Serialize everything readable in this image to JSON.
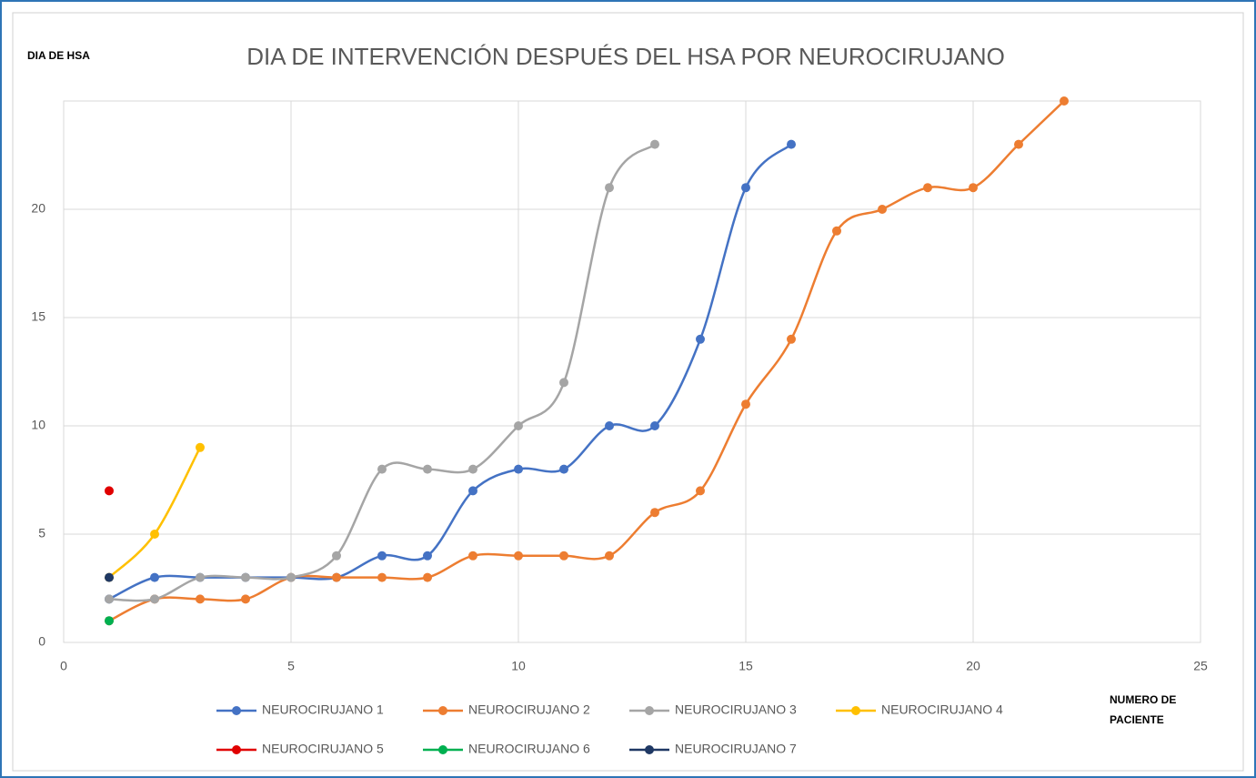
{
  "chart_data": {
    "type": "line",
    "title": "DIA DE INTERVENCIÓN DESPUÉS DEL HSA POR NEUROCIRUJANO",
    "y_label": "DIA DE HSA",
    "x_label": "NUMERO DE PACIENTE",
    "xlim": [
      0,
      25
    ],
    "xticks": [
      0,
      5,
      10,
      15,
      20,
      25
    ],
    "ylim": [
      0,
      25
    ],
    "yticks": [
      0,
      5,
      10,
      15,
      20
    ],
    "grid": true,
    "smooth": true,
    "legend": "bottom",
    "series": [
      {
        "name": "NEUROCIRUJANO 1",
        "color": "#4472c4",
        "x": [
          1,
          2,
          3,
          4,
          5,
          6,
          7,
          8,
          9,
          10,
          11,
          12,
          13,
          14,
          15,
          16
        ],
        "values": [
          2,
          3,
          3,
          3,
          3,
          3,
          4,
          4,
          7,
          8,
          8,
          10,
          10,
          14,
          21,
          23
        ]
      },
      {
        "name": "NEUROCIRUJANO 2",
        "color": "#ed7d31",
        "x": [
          1,
          2,
          3,
          4,
          5,
          6,
          7,
          8,
          9,
          10,
          11,
          12,
          13,
          14,
          15,
          16,
          17,
          18,
          19,
          20,
          21,
          22
        ],
        "values": [
          1,
          2,
          2,
          2,
          3,
          3,
          3,
          3,
          4,
          4,
          4,
          4,
          6,
          7,
          11,
          14,
          19,
          20,
          21,
          21,
          23,
          25
        ]
      },
      {
        "name": "NEUROCIRUJANO 3",
        "color": "#a5a5a5",
        "x": [
          1,
          2,
          3,
          4,
          5,
          6,
          7,
          8,
          9,
          10,
          11,
          12,
          13
        ],
        "values": [
          2,
          2,
          3,
          3,
          3,
          4,
          8,
          8,
          8,
          10,
          12,
          21,
          23
        ]
      },
      {
        "name": "NEUROCIRUJANO 4",
        "color": "#ffc000",
        "x": [
          1,
          2,
          3
        ],
        "values": [
          3,
          5,
          9
        ]
      },
      {
        "name": "NEUROCIRUJANO 5",
        "color": "#e00000",
        "x": [
          1
        ],
        "values": [
          7
        ]
      },
      {
        "name": "NEUROCIRUJANO 6",
        "color": "#00b050",
        "x": [
          1
        ],
        "values": [
          1
        ]
      },
      {
        "name": "NEUROCIRUJANO 7",
        "color": "#1f3864",
        "x": [
          1
        ],
        "values": [
          3
        ]
      }
    ]
  }
}
